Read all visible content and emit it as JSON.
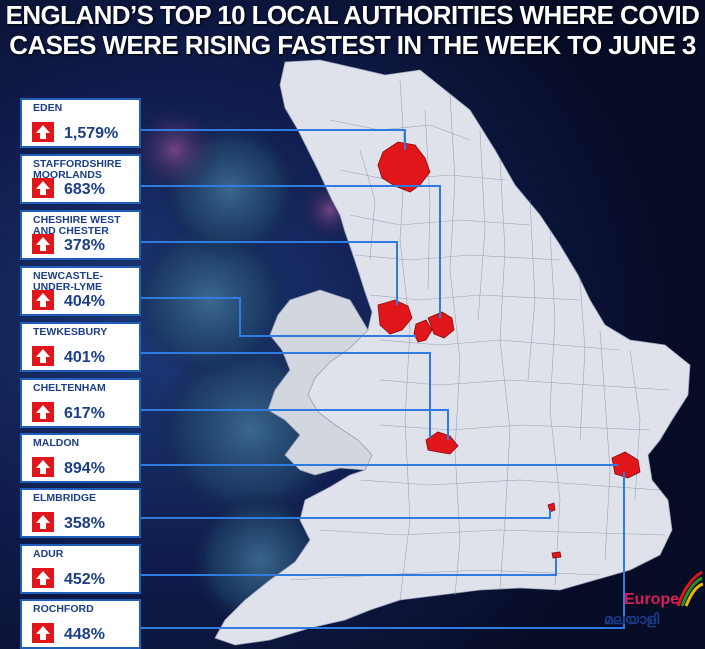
{
  "title": {
    "line1": "ENGLAND’S TOP 10 LOCAL AUTHORITIES WHERE COVID",
    "line2": "CASES WERE RISING FASTEST IN THE WEEK TO JUNE 3"
  },
  "authorities": [
    {
      "name": "EDEN",
      "change": "1,579%"
    },
    {
      "name": "STAFFORDSHIRE MOORLANDS",
      "change": "683%"
    },
    {
      "name": "CHESHIRE WEST AND CHESTER",
      "change": "378%"
    },
    {
      "name": "NEWCASTLE-UNDER-LYME",
      "change": "404%"
    },
    {
      "name": "TEWKESBURY",
      "change": "401%"
    },
    {
      "name": "CHELTENHAM",
      "change": "617%"
    },
    {
      "name": "MALDON",
      "change": "894%"
    },
    {
      "name": "ELMBRIDGE",
      "change": "358%"
    },
    {
      "name": "ADUR",
      "change": "452%"
    },
    {
      "name": "ROCHFORD",
      "change": "448%"
    }
  ],
  "logo": {
    "text": "Europe",
    "script_text": "മലയാളി"
  },
  "colors": {
    "background": "#0b1233",
    "map_fill": "#dfe2ea",
    "highlight": "#e0161b",
    "connector": "#2f7be0",
    "card_border": "#1f5fb8",
    "card_text": "#1c3f86",
    "arrow": "#e0161b"
  }
}
